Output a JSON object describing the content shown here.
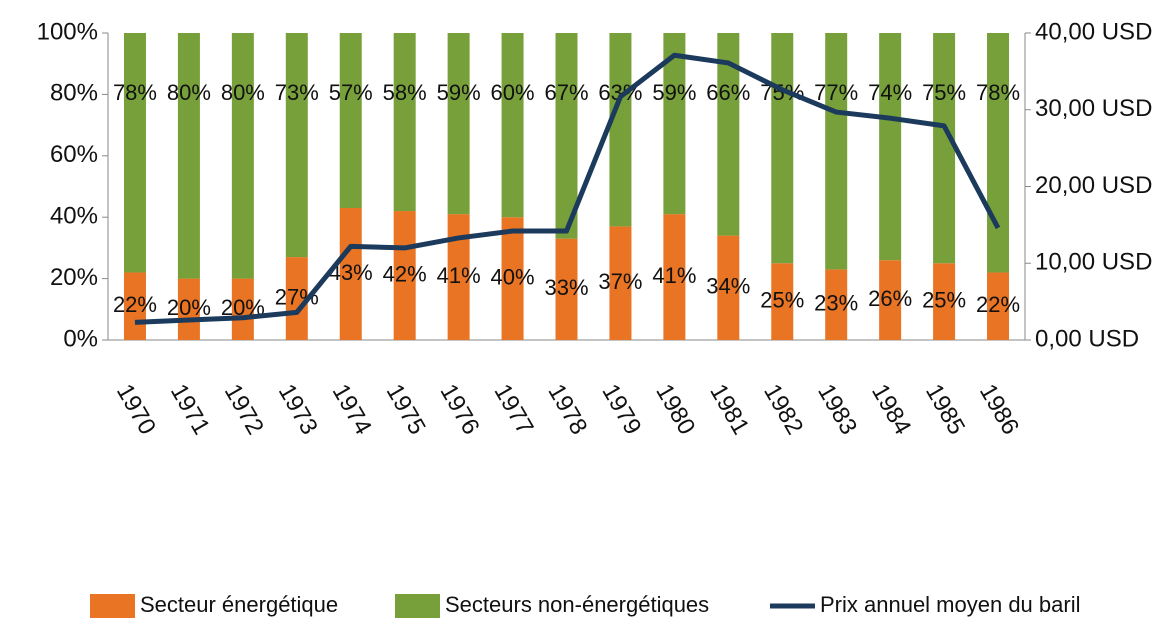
{
  "chart_data": {
    "type": "stacked_bar_line",
    "categories": [
      "1970",
      "1971",
      "1972",
      "1973",
      "1974",
      "1975",
      "1976",
      "1977",
      "1978",
      "1979",
      "1980",
      "1981",
      "1982",
      "1983",
      "1984",
      "1985",
      "1986"
    ],
    "series": [
      {
        "name": "Secteur énergétique",
        "color": "#e87424",
        "type": "bar",
        "values": [
          22,
          20,
          20,
          27,
          43,
          42,
          41,
          40,
          33,
          37,
          41,
          34,
          25,
          23,
          26,
          25,
          22
        ],
        "value_labels": [
          "22%",
          "20%",
          "20%",
          "27%",
          "43%",
          "42%",
          "41%",
          "40%",
          "33%",
          "37%",
          "41%",
          "34%",
          "25%",
          "23%",
          "26%",
          "25%",
          "22%"
        ]
      },
      {
        "name": "Secteurs non-énergétiques",
        "color": "#77a03a",
        "type": "bar",
        "values": [
          78,
          80,
          80,
          73,
          57,
          58,
          59,
          60,
          67,
          63,
          59,
          66,
          75,
          77,
          74,
          75,
          78
        ],
        "value_labels": [
          "78%",
          "80%",
          "80%",
          "73%",
          "57%",
          "58%",
          "59%",
          "60%",
          "67%",
          "63%",
          "59%",
          "66%",
          "75%",
          "77%",
          "74%",
          "75%",
          "78%"
        ]
      },
      {
        "name": "Prix annuel moyen du baril",
        "color": "#1b3a5c",
        "type": "line",
        "axis": "y2",
        "values": [
          2.3,
          2.6,
          2.9,
          3.6,
          12.2,
          12.0,
          13.3,
          14.2,
          14.2,
          31.7,
          37.1,
          36.1,
          32.6,
          29.7,
          28.9,
          27.9,
          14.6
        ]
      }
    ],
    "ylim": [
      0,
      100
    ],
    "yticks": [
      {
        "value": 0,
        "label": "0%"
      },
      {
        "value": 20,
        "label": "20%"
      },
      {
        "value": 40,
        "label": "40%"
      },
      {
        "value": 60,
        "label": "60%"
      },
      {
        "value": 80,
        "label": "80%"
      },
      {
        "value": 100,
        "label": "100%"
      }
    ],
    "y2lim": [
      0,
      40
    ],
    "y2ticks": [
      {
        "value": 0,
        "label": "0,00 USD"
      },
      {
        "value": 10,
        "label": "10,00 USD"
      },
      {
        "value": 20,
        "label": "20,00 USD"
      },
      {
        "value": 30,
        "label": "30,00 USD"
      },
      {
        "value": 40,
        "label": "40,00 USD"
      }
    ],
    "legend": "bottom"
  }
}
